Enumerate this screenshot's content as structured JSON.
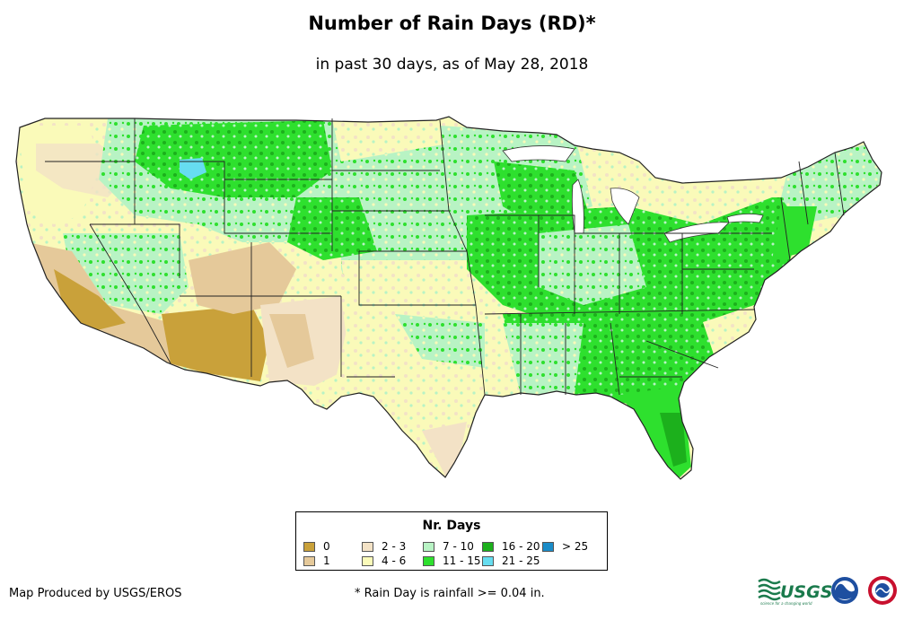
{
  "header": {
    "title": "Number of Rain Days (RD)*",
    "subtitle": "in past 30 days, as of May 28, 2018"
  },
  "legend": {
    "title": "Nr. Days",
    "items": [
      {
        "label": "0",
        "color": "#c9a13a"
      },
      {
        "label": "1",
        "color": "#e5c99a"
      },
      {
        "label": "2 - 3",
        "color": "#f3e2c6"
      },
      {
        "label": "4 - 6",
        "color": "#fafab9"
      },
      {
        "label": "7 - 10",
        "color": "#b8f3c4"
      },
      {
        "label": "11 - 15",
        "color": "#2ee02e"
      },
      {
        "label": "16 - 20",
        "color": "#1cb01c"
      },
      {
        "label": "21 - 25",
        "color": "#66ddf0"
      },
      {
        "label": "> 25",
        "color": "#1a8cc8"
      }
    ]
  },
  "footer": {
    "credit": "Map Produced by USGS/EROS",
    "footnote": "* Rain Day is rainfall >= 0.04 in.",
    "usgs_logo": "USGS",
    "usgs_tagline": "science for a changing world"
  },
  "icons": {
    "usgs": "usgs-logo-icon",
    "noaa": "noaa-logo-icon",
    "nws": "nws-logo-icon"
  }
}
